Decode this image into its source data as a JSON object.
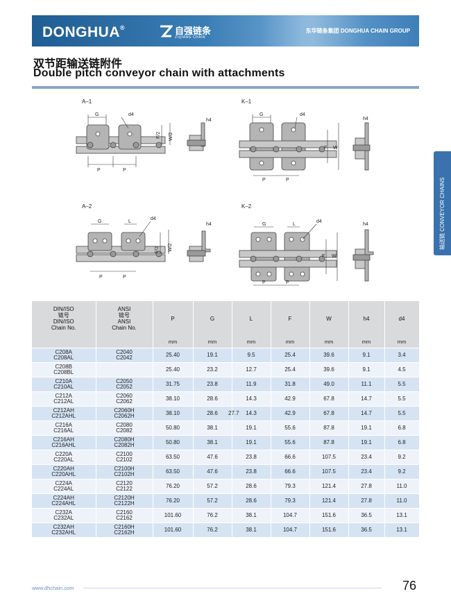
{
  "header": {
    "brand": "DONGHUA",
    "brand_mark": "®",
    "brand_cn": "自强链条",
    "brand_en": "ZIQIANG CHAIN",
    "group": "东华链条集团 DONGHUA CHAIN GROUP"
  },
  "title": {
    "cn": "双节距输送链附件",
    "en": "Double pitch conveyor chain with attachments"
  },
  "side_tab": "输送链 CONVEYOR CHAINS",
  "diagrams": [
    {
      "id": "A–1",
      "labels": [
        "G",
        "d4",
        "h4",
        "F/2",
        "W/2",
        "P",
        "P"
      ]
    },
    {
      "id": "K–1",
      "labels": [
        "G",
        "d4",
        "h4",
        "F",
        "W",
        "P",
        "P"
      ]
    },
    {
      "id": "A–2",
      "labels": [
        "G",
        "L",
        "d4",
        "h4",
        "F/2",
        "W/2",
        "P",
        "P"
      ]
    },
    {
      "id": "K–2",
      "labels": [
        "G",
        "L",
        "d4",
        "h4",
        "F",
        "W",
        "P",
        "P"
      ]
    }
  ],
  "table": {
    "headers": {
      "din": [
        "DIN/ISO",
        "链号",
        "DIN/ISO",
        "Chain No."
      ],
      "ansi": [
        "ANSI",
        "链号",
        "ANSI",
        "Chain No."
      ],
      "cols": [
        "P",
        "G",
        "L",
        "F",
        "W",
        "h4",
        "d4"
      ]
    },
    "units": [
      "mm",
      "mm",
      "mm",
      "mm",
      "mm",
      "mm",
      "mm"
    ],
    "rows": [
      {
        "din": [
          "C208A",
          "C208AL"
        ],
        "ansi": [
          "C2040",
          "C2042"
        ],
        "vals": [
          "25.40",
          "19.1",
          "9.5",
          "25.4",
          "39.6",
          "9.1",
          "3.4"
        ]
      },
      {
        "din": [
          "C208B",
          "C208BL"
        ],
        "ansi": [
          "",
          ""
        ],
        "vals": [
          "25.40",
          "23.2",
          "12.7",
          "25.4",
          "39.6",
          "9.1",
          "4.5"
        ]
      },
      {
        "din": [
          "C210A",
          "C210AL"
        ],
        "ansi": [
          "C2050",
          "C2052"
        ],
        "vals": [
          "31.75",
          "23.8",
          "11.9",
          "31.8",
          "49.0",
          "11.1",
          "5.5"
        ]
      },
      {
        "din": [
          "C212A",
          "C212AL"
        ],
        "ansi": [
          "C2060",
          "C2062"
        ],
        "vals": [
          "38.10",
          "28.6",
          "14.3",
          "42.9",
          "67.8",
          "14.7",
          "5.5"
        ]
      },
      {
        "din": [
          "C212AH",
          "C212AHL"
        ],
        "ansi": [
          "C2060H",
          "C2062H"
        ],
        "vals": [
          "38.10",
          "28.6",
          "14.3",
          "42.9",
          "67.8",
          "14.7",
          "5.5"
        ]
      },
      {
        "din": [
          "C216A",
          "C216AL"
        ],
        "ansi": [
          "C2080",
          "C2082"
        ],
        "vals": [
          "50.80",
          "38.1",
          "19.1",
          "55.6",
          "87.8",
          "19.1",
          "6.8"
        ]
      },
      {
        "din": [
          "C216AH",
          "C216AHL"
        ],
        "ansi": [
          "C2080H",
          "C2082H"
        ],
        "vals": [
          "50.80",
          "38.1",
          "19.1",
          "55.6",
          "87.8",
          "19.1",
          "6.8"
        ]
      },
      {
        "din": [
          "C220A",
          "C220AL"
        ],
        "ansi": [
          "C2100",
          "C2102"
        ],
        "vals": [
          "63.50",
          "47.6",
          "23.8",
          "66.6",
          "107.5",
          "23.4",
          "9.2"
        ]
      },
      {
        "din": [
          "C220AH",
          "C220AHL"
        ],
        "ansi": [
          "C2100H",
          "C2102H"
        ],
        "vals": [
          "63.50",
          "47.6",
          "23.8",
          "66.6",
          "107.5",
          "23.4",
          "9.2"
        ]
      },
      {
        "din": [
          "C224A",
          "C224AL"
        ],
        "ansi": [
          "C2120",
          "C2122"
        ],
        "vals": [
          "76.20",
          "57.2",
          "28.6",
          "79.3",
          "121.4",
          "27.8",
          "11.0"
        ]
      },
      {
        "din": [
          "C224AH",
          "C224AHL"
        ],
        "ansi": [
          "C2120H",
          "C2122H"
        ],
        "vals": [
          "76.20",
          "57.2",
          "28.6",
          "79.3",
          "121.4",
          "27.8",
          "11.0"
        ]
      },
      {
        "din": [
          "C232A",
          "C232AL"
        ],
        "ansi": [
          "C2160",
          "C2162"
        ],
        "vals": [
          "101.60",
          "76.2",
          "38.1",
          "104.7",
          "151.6",
          "36.5",
          "13.1"
        ]
      },
      {
        "din": [
          "C232AH",
          "C232AHL"
        ],
        "ansi": [
          "C2160H",
          "C2162H"
        ],
        "vals": [
          "101.60",
          "76.2",
          "38.1",
          "104.7",
          "151.6",
          "36.5",
          "13.1"
        ]
      }
    ],
    "stray_note": "27.7"
  },
  "footer": {
    "url": "www.dhchain.com",
    "page": "76"
  }
}
